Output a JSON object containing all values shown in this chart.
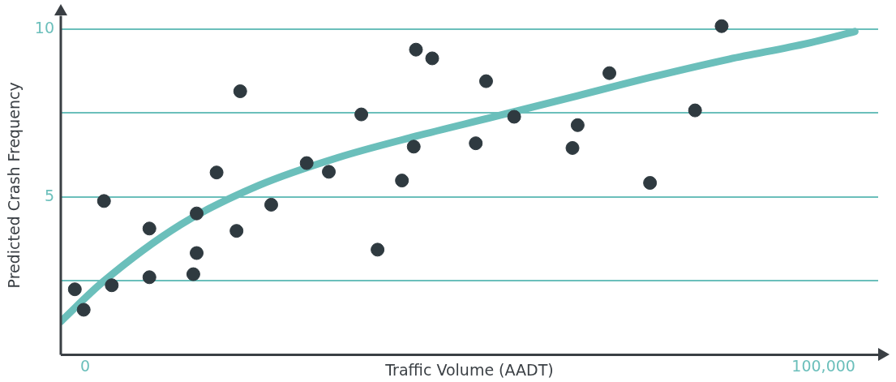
{
  "chart_data": {
    "type": "scatter",
    "xlabel": "Traffic Volume (AADT)",
    "ylabel": "Predicted Crash Frequency",
    "xlim": [
      -3300,
      107400
    ],
    "ylim": [
      0.3,
      10.4
    ],
    "xticks": [
      {
        "value": 0,
        "label": "0"
      },
      {
        "value": 100000,
        "label": "100,000"
      }
    ],
    "yticks": [
      {
        "value": 2.5,
        "label": null
      },
      5,
      {
        "value": 7.5,
        "label": null
      },
      10
    ],
    "grid": "y",
    "legend": false,
    "series": [
      {
        "color": "#2f3a40",
        "marker": "circle",
        "x": [
          -1400,
          -200,
          2550,
          3600,
          8700,
          8700,
          14650,
          15100,
          15100,
          17800,
          20500,
          21000,
          25200,
          30000,
          33000,
          37400,
          39600,
          42900,
          44500,
          44800,
          47000,
          52900,
          54300,
          58100,
          66000,
          66700,
          71000,
          76500,
          82600,
          86200
        ],
        "values": [
          2.25,
          1.64,
          4.88,
          2.37,
          4.06,
          2.61,
          2.7,
          3.33,
          4.51,
          5.73,
          3.99,
          8.15,
          4.77,
          6.01,
          5.75,
          7.46,
          3.43,
          5.49,
          6.5,
          9.39,
          9.13,
          6.6,
          8.45,
          7.39,
          6.46,
          7.14,
          8.69,
          5.42,
          7.58,
          10.09
        ]
      },
      {
        "type": "line",
        "color": "#6bbfbb",
        "marker": "none",
        "x": [
          -3300,
          2340,
          12950,
          23570,
          34180,
          44800,
          55410,
          66030,
          76650,
          87260,
          97880,
          104250
        ],
        "values": [
          1.29,
          2.46,
          4.18,
          5.35,
          6.17,
          6.81,
          7.39,
          7.98,
          8.57,
          9.11,
          9.58,
          9.93
        ]
      }
    ]
  }
}
